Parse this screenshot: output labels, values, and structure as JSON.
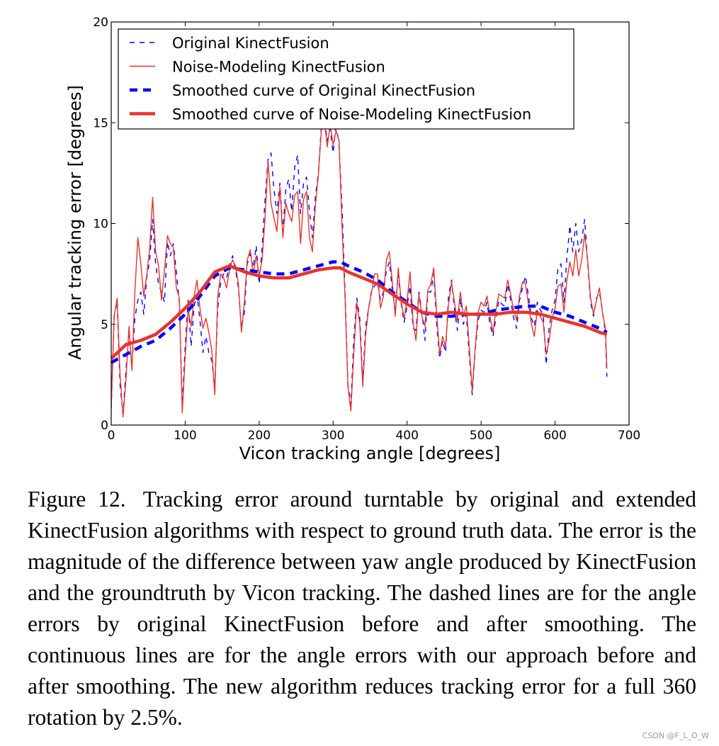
{
  "chart_data": {
    "type": "line",
    "title": "",
    "xlabel": "Vicon tracking angle [degrees]",
    "ylabel": "Angular tracking error [degrees]",
    "xlim": [
      0,
      700
    ],
    "ylim": [
      0,
      20
    ],
    "xticks": [
      0,
      100,
      200,
      300,
      400,
      500,
      600,
      700
    ],
    "yticks": [
      0,
      5,
      10,
      15,
      20
    ],
    "grid": false,
    "legend_position": "upper-left",
    "series": [
      {
        "name": "Original KinectFusion",
        "color": "#0000ff",
        "style": "thin-dashed",
        "x": [
          0,
          4,
          8,
          12,
          16,
          20,
          24,
          28,
          32,
          36,
          40,
          44,
          48,
          52,
          56,
          60,
          64,
          68,
          72,
          76,
          80,
          84,
          88,
          92,
          96,
          100,
          104,
          108,
          112,
          116,
          120,
          124,
          128,
          132,
          136,
          140,
          144,
          148,
          152,
          156,
          160,
          164,
          168,
          172,
          176,
          180,
          184,
          188,
          192,
          196,
          200,
          204,
          208,
          212,
          216,
          220,
          224,
          228,
          232,
          236,
          240,
          244,
          248,
          252,
          256,
          260,
          264,
          268,
          272,
          276,
          280,
          284,
          288,
          292,
          296,
          300,
          304,
          308,
          312,
          316,
          320,
          324,
          328,
          332,
          336,
          340,
          344,
          348,
          352,
          356,
          360,
          364,
          368,
          372,
          376,
          380,
          384,
          388,
          392,
          396,
          400,
          404,
          408,
          412,
          416,
          420,
          424,
          428,
          432,
          436,
          440,
          444,
          448,
          452,
          456,
          460,
          464,
          468,
          472,
          476,
          480,
          484,
          488,
          492,
          496,
          500,
          504,
          508,
          512,
          516,
          520,
          524,
          528,
          532,
          536,
          540,
          544,
          548,
          552,
          556,
          560,
          564,
          568,
          572,
          576,
          580,
          584,
          588,
          592,
          596,
          600,
          604,
          608,
          612,
          616,
          620,
          624,
          628,
          632,
          636,
          640,
          644,
          648,
          652,
          656,
          660,
          664,
          668,
          670
        ],
        "y": [
          0.8,
          5.5,
          6.1,
          2.0,
          0.5,
          2.8,
          4.5,
          2.9,
          5.3,
          6.2,
          6.6,
          5.5,
          7.3,
          8.2,
          10.2,
          8.0,
          7.0,
          6.6,
          6.1,
          9.1,
          8.4,
          9.0,
          7.6,
          6.1,
          1.0,
          3.9,
          6.2,
          3.9,
          5.9,
          6.5,
          5.2,
          3.6,
          4.4,
          3.6,
          3.2,
          1.9,
          5.8,
          7.1,
          7.5,
          7.3,
          7.9,
          8.4,
          7.7,
          6.8,
          4.8,
          5.6,
          8.0,
          8.5,
          7.8,
          8.9,
          7.0,
          8.8,
          11.2,
          13.2,
          13.5,
          11.7,
          10.5,
          12.0,
          9.6,
          11.7,
          12.2,
          10.6,
          12.8,
          13.4,
          10.5,
          12.0,
          12.3,
          10.6,
          9.3,
          11.3,
          12.5,
          14.8,
          15.3,
          14.1,
          14.7,
          13.5,
          15.0,
          13.9,
          10.8,
          6.7,
          2.0,
          1.0,
          4.3,
          6.3,
          5.3,
          2.2,
          4.9,
          5.8,
          6.7,
          6.9,
          7.1,
          6.2,
          6.6,
          7.7,
          8.1,
          6.7,
          5.7,
          7.5,
          6.0,
          5.1,
          5.9,
          6.9,
          4.8,
          4.7,
          6.6,
          5.6,
          4.2,
          6.6,
          6.6,
          7.5,
          5.0,
          3.3,
          4.2,
          3.6,
          6.4,
          7.2,
          5.8,
          4.7,
          6.3,
          5.0,
          5.5,
          3.5,
          1.5,
          3.7,
          5.2,
          5.7,
          5.6,
          6.1,
          5.0,
          4.4,
          5.3,
          6.2,
          6.0,
          5.9,
          7.0,
          6.2,
          5.3,
          4.8,
          6.2,
          6.8,
          7.4,
          6.4,
          5.3,
          4.9,
          6.1,
          5.7,
          5.5,
          3.0,
          4.8,
          5.7,
          6.2,
          7.8,
          8.0,
          6.1,
          8.3,
          9.9,
          8.6,
          10.0,
          8.6,
          9.2,
          10.2,
          8.1,
          6.1,
          5.4,
          6.3,
          6.6,
          5.7,
          4.6,
          2.4
        ]
      },
      {
        "name": "Noise-Modeling KinectFusion",
        "color": "#e8342c",
        "style": "thin-solid",
        "x": [
          0,
          4,
          8,
          12,
          16,
          20,
          24,
          28,
          32,
          36,
          40,
          44,
          48,
          52,
          56,
          60,
          64,
          68,
          72,
          76,
          80,
          84,
          88,
          92,
          96,
          100,
          104,
          108,
          112,
          116,
          120,
          124,
          128,
          132,
          136,
          140,
          144,
          148,
          152,
          156,
          160,
          164,
          168,
          172,
          176,
          180,
          184,
          188,
          192,
          196,
          200,
          204,
          208,
          212,
          216,
          220,
          224,
          228,
          232,
          236,
          240,
          244,
          248,
          252,
          256,
          260,
          264,
          268,
          272,
          276,
          280,
          284,
          288,
          292,
          296,
          300,
          304,
          308,
          312,
          316,
          320,
          324,
          328,
          332,
          336,
          340,
          344,
          348,
          352,
          356,
          360,
          364,
          368,
          372,
          376,
          380,
          384,
          388,
          392,
          396,
          400,
          404,
          408,
          412,
          416,
          420,
          424,
          428,
          432,
          436,
          440,
          444,
          448,
          452,
          456,
          460,
          464,
          468,
          472,
          476,
          480,
          484,
          488,
          492,
          496,
          500,
          504,
          508,
          512,
          516,
          520,
          524,
          528,
          532,
          536,
          540,
          544,
          548,
          552,
          556,
          560,
          564,
          568,
          572,
          576,
          580,
          584,
          588,
          592,
          596,
          600,
          604,
          608,
          612,
          616,
          620,
          624,
          628,
          632,
          636,
          640,
          644,
          648,
          652,
          656,
          660,
          664,
          668,
          670
        ],
        "y": [
          0.9,
          5.4,
          6.3,
          2.5,
          0.4,
          2.3,
          4.9,
          2.7,
          6.6,
          9.3,
          8.0,
          6.4,
          7.4,
          8.8,
          11.3,
          8.6,
          7.9,
          6.2,
          7.7,
          9.4,
          9.0,
          8.8,
          6.8,
          6.3,
          0.6,
          3.4,
          5.7,
          4.9,
          6.4,
          7.2,
          5.8,
          4.8,
          5.3,
          4.6,
          3.7,
          1.5,
          6.4,
          7.5,
          7.3,
          6.8,
          7.7,
          8.2,
          7.9,
          7.0,
          4.6,
          6.1,
          8.2,
          8.7,
          7.5,
          8.4,
          7.4,
          8.2,
          10.3,
          13.1,
          11.0,
          10.3,
          9.6,
          11.8,
          9.3,
          11.0,
          10.5,
          10.1,
          11.4,
          11.6,
          9.0,
          11.2,
          11.6,
          9.3,
          8.6,
          10.9,
          12.4,
          14.6,
          15.2,
          13.8,
          14.9,
          13.9,
          14.6,
          14.1,
          9.9,
          6.4,
          1.9,
          0.7,
          3.6,
          6.1,
          5.0,
          1.9,
          4.5,
          5.8,
          6.6,
          7.5,
          7.5,
          5.8,
          6.4,
          8.2,
          8.6,
          7.1,
          5.4,
          7.8,
          6.1,
          5.3,
          6.2,
          7.6,
          5.1,
          4.2,
          6.5,
          5.4,
          4.9,
          6.7,
          7.0,
          7.8,
          5.5,
          3.5,
          4.4,
          3.9,
          6.0,
          7.1,
          6.1,
          5.2,
          6.6,
          5.4,
          5.9,
          3.9,
          1.7,
          3.8,
          5.6,
          6.1,
          5.9,
          6.4,
          5.4,
          4.6,
          5.7,
          6.5,
          6.4,
          6.3,
          7.2,
          6.5,
          5.7,
          5.2,
          6.4,
          7.1,
          7.0,
          6.0,
          5.0,
          4.4,
          5.7,
          5.4,
          5.1,
          3.5,
          4.2,
          5.3,
          5.8,
          6.9,
          7.0,
          5.6,
          7.2,
          8.1,
          7.4,
          8.7,
          7.4,
          8.2,
          9.5,
          8.2,
          6.3,
          5.5,
          6.2,
          6.8,
          5.6,
          4.8,
          2.8
        ]
      },
      {
        "name": "Smoothed curve of Original KinectFusion",
        "color": "#0000ff",
        "style": "thick-dashed",
        "x": [
          0,
          20,
          40,
          60,
          80,
          100,
          120,
          140,
          160,
          180,
          200,
          220,
          240,
          260,
          280,
          300,
          310,
          320,
          340,
          360,
          380,
          400,
          420,
          440,
          460,
          480,
          500,
          520,
          540,
          560,
          580,
          600,
          620,
          640,
          660,
          670
        ],
        "y": [
          3.1,
          3.5,
          3.9,
          4.2,
          4.8,
          5.5,
          6.4,
          7.4,
          7.8,
          7.7,
          7.6,
          7.5,
          7.5,
          7.7,
          7.9,
          8.1,
          8.1,
          7.9,
          7.6,
          7.2,
          6.6,
          6.1,
          5.6,
          5.4,
          5.4,
          5.5,
          5.5,
          5.7,
          5.8,
          5.9,
          5.9,
          5.6,
          5.4,
          5.1,
          4.8,
          4.6
        ]
      },
      {
        "name": "Smoothed curve of Noise-Modeling KinectFusion",
        "color": "#e8342c",
        "style": "thick-solid",
        "x": [
          0,
          20,
          40,
          60,
          80,
          100,
          120,
          140,
          160,
          180,
          200,
          220,
          240,
          260,
          280,
          300,
          310,
          320,
          340,
          360,
          380,
          400,
          420,
          440,
          460,
          480,
          500,
          520,
          540,
          560,
          580,
          600,
          620,
          640,
          660,
          670
        ],
        "y": [
          3.3,
          4.0,
          4.2,
          4.5,
          5.1,
          5.8,
          6.6,
          7.6,
          7.9,
          7.6,
          7.4,
          7.3,
          7.3,
          7.5,
          7.7,
          7.8,
          7.8,
          7.6,
          7.3,
          7.0,
          6.5,
          6.0,
          5.6,
          5.5,
          5.6,
          5.5,
          5.5,
          5.5,
          5.6,
          5.6,
          5.5,
          5.3,
          5.1,
          4.9,
          4.6,
          4.5
        ]
      }
    ]
  },
  "caption": {
    "label": "Figure 12.",
    "text": "Tracking error around turntable by original and extended KinectFusion algorithms with respect to ground truth data. The error is the magnitude of the difference between yaw angle produced by KinectFusion and the groundtruth by Vicon tracking. The dashed lines are for the angle errors by original KinectFusion before and after smoothing. The continuous lines are for the angle errors with our approach before and after smoothing. The new algorithm reduces tracking error for a full 360 rotation by 2.5%."
  },
  "watermark": "CSDN @F_L_O_W"
}
